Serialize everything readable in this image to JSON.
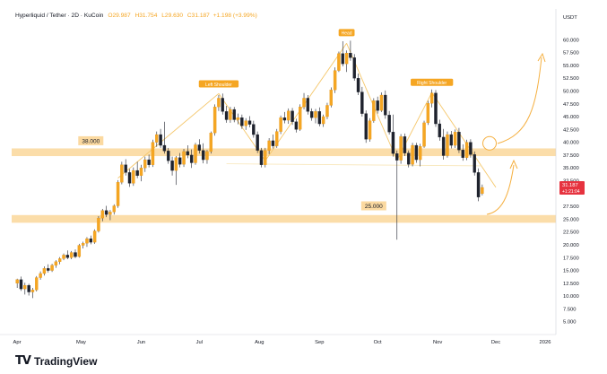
{
  "header": {
    "symbol": "Hyperliquid / Tether · 2D · KuCoin",
    "open": "O29.987",
    "high": "H31.754",
    "low": "L29.630",
    "close": "C31.187",
    "change": "+1.198 (+3.99%)"
  },
  "price_axis": {
    "currency": "USDT",
    "ticks": [
      "60.000",
      "57.500",
      "55.000",
      "52.500",
      "50.000",
      "47.500",
      "45.000",
      "42.500",
      "40.000",
      "37.500",
      "35.000",
      "32.500",
      "27.500",
      "25.000",
      "22.500",
      "20.000",
      "17.500",
      "15.000",
      "12.500",
      "10.000",
      "7.500",
      "5.000"
    ],
    "current_price": "31.187",
    "countdown": "+1:21:04"
  },
  "time_axis": {
    "ticks": [
      "Apr",
      "May",
      "Jun",
      "Jul",
      "Aug",
      "Sep",
      "Oct",
      "Nov",
      "Dec",
      "2026"
    ]
  },
  "annotations": {
    "left_shoulder": "Left Shoulder",
    "head": "Head",
    "right_shoulder": "Right Shoulder",
    "level_high": "38.000",
    "level_low": "25.000"
  },
  "brand": {
    "logo": "TV",
    "name": "TradingView"
  },
  "colors": {
    "up_candle": "#f5a623",
    "down_candle": "#1e222d",
    "zone": "#fbd9a0",
    "pattern_line": "#f5c76b",
    "arrow": "#f5b041",
    "price_tag": "#e6333f"
  },
  "chart_data": {
    "type": "candlestick",
    "timeframe": "2D",
    "x_axis": "date",
    "ylim": [
      2.5,
      62.5
    ],
    "support_zones": [
      {
        "label": "38.000",
        "from": 37.3,
        "to": 38.8
      },
      {
        "label": "25.000",
        "from": 24.3,
        "to": 25.8
      }
    ],
    "candles": [
      {
        "date": "2025-03-29",
        "o": 12.5,
        "h": 13.4,
        "l": 11.6,
        "c": 13.2
      },
      {
        "date": "2025-03-31",
        "o": 13.2,
        "h": 13.8,
        "l": 11.0,
        "c": 11.4
      },
      {
        "date": "2025-04-02",
        "o": 11.4,
        "h": 12.6,
        "l": 10.3,
        "c": 12.1
      },
      {
        "date": "2025-04-04",
        "o": 12.1,
        "h": 12.4,
        "l": 10.1,
        "c": 10.8
      },
      {
        "date": "2025-04-06",
        "o": 10.8,
        "h": 11.6,
        "l": 9.6,
        "c": 11.2
      },
      {
        "date": "2025-04-08",
        "o": 11.2,
        "h": 13.9,
        "l": 10.9,
        "c": 13.6
      },
      {
        "date": "2025-04-10",
        "o": 13.6,
        "h": 14.8,
        "l": 13.2,
        "c": 14.4
      },
      {
        "date": "2025-04-12",
        "o": 14.4,
        "h": 15.8,
        "l": 14.0,
        "c": 15.4
      },
      {
        "date": "2025-04-14",
        "o": 15.4,
        "h": 16.2,
        "l": 14.6,
        "c": 15.0
      },
      {
        "date": "2025-04-16",
        "o": 15.0,
        "h": 16.3,
        "l": 14.7,
        "c": 16.0
      },
      {
        "date": "2025-04-18",
        "o": 16.0,
        "h": 17.0,
        "l": 15.5,
        "c": 16.7
      },
      {
        "date": "2025-04-20",
        "o": 16.7,
        "h": 17.6,
        "l": 16.2,
        "c": 17.3
      },
      {
        "date": "2025-04-22",
        "o": 17.3,
        "h": 18.3,
        "l": 17.0,
        "c": 18.0
      },
      {
        "date": "2025-04-24",
        "o": 18.0,
        "h": 18.9,
        "l": 17.2,
        "c": 17.5
      },
      {
        "date": "2025-04-26",
        "o": 17.5,
        "h": 18.8,
        "l": 17.2,
        "c": 18.5
      },
      {
        "date": "2025-04-28",
        "o": 18.5,
        "h": 19.1,
        "l": 17.4,
        "c": 17.7
      },
      {
        "date": "2025-04-30",
        "o": 17.7,
        "h": 20.2,
        "l": 17.5,
        "c": 19.9
      },
      {
        "date": "2025-05-02",
        "o": 19.9,
        "h": 20.6,
        "l": 19.3,
        "c": 20.3
      },
      {
        "date": "2025-05-04",
        "o": 20.3,
        "h": 21.5,
        "l": 19.6,
        "c": 21.2
      },
      {
        "date": "2025-05-06",
        "o": 21.2,
        "h": 21.8,
        "l": 20.1,
        "c": 20.5
      },
      {
        "date": "2025-05-08",
        "o": 20.5,
        "h": 23.0,
        "l": 20.2,
        "c": 22.7
      },
      {
        "date": "2025-05-10",
        "o": 22.7,
        "h": 25.6,
        "l": 22.4,
        "c": 25.2
      },
      {
        "date": "2025-05-12",
        "o": 25.2,
        "h": 27.0,
        "l": 24.6,
        "c": 26.7
      },
      {
        "date": "2025-05-14",
        "o": 26.7,
        "h": 27.6,
        "l": 25.4,
        "c": 25.9
      },
      {
        "date": "2025-05-16",
        "o": 25.9,
        "h": 26.8,
        "l": 24.8,
        "c": 26.4
      },
      {
        "date": "2025-05-18",
        "o": 26.4,
        "h": 27.9,
        "l": 25.9,
        "c": 27.6
      },
      {
        "date": "2025-05-20",
        "o": 27.6,
        "h": 32.6,
        "l": 27.2,
        "c": 32.2
      },
      {
        "date": "2025-05-22",
        "o": 32.2,
        "h": 36.2,
        "l": 31.8,
        "c": 35.6
      },
      {
        "date": "2025-05-24",
        "o": 35.6,
        "h": 36.7,
        "l": 33.5,
        "c": 34.1
      },
      {
        "date": "2025-05-26",
        "o": 34.1,
        "h": 34.8,
        "l": 31.3,
        "c": 32.0
      },
      {
        "date": "2025-05-28",
        "o": 32.0,
        "h": 35.1,
        "l": 31.5,
        "c": 34.5
      },
      {
        "date": "2025-05-30",
        "o": 34.5,
        "h": 36.2,
        "l": 33.0,
        "c": 33.5
      },
      {
        "date": "2025-06-01",
        "o": 33.5,
        "h": 35.6,
        "l": 32.4,
        "c": 35.0
      },
      {
        "date": "2025-06-03",
        "o": 35.0,
        "h": 37.2,
        "l": 34.2,
        "c": 36.6
      },
      {
        "date": "2025-06-05",
        "o": 36.6,
        "h": 37.6,
        "l": 35.1,
        "c": 35.6
      },
      {
        "date": "2025-06-07",
        "o": 35.6,
        "h": 40.5,
        "l": 35.2,
        "c": 40.0
      },
      {
        "date": "2025-06-09",
        "o": 40.0,
        "h": 42.1,
        "l": 39.1,
        "c": 41.5
      },
      {
        "date": "2025-06-11",
        "o": 41.5,
        "h": 42.6,
        "l": 38.9,
        "c": 39.4
      },
      {
        "date": "2025-06-13",
        "o": 39.4,
        "h": 44.0,
        "l": 37.8,
        "c": 38.3
      },
      {
        "date": "2025-06-15",
        "o": 38.3,
        "h": 38.9,
        "l": 35.8,
        "c": 36.4
      },
      {
        "date": "2025-06-17",
        "o": 36.4,
        "h": 37.2,
        "l": 33.5,
        "c": 34.5
      },
      {
        "date": "2025-06-19",
        "o": 34.5,
        "h": 37.3,
        "l": 31.7,
        "c": 37.0
      },
      {
        "date": "2025-06-21",
        "o": 37.0,
        "h": 37.9,
        "l": 35.1,
        "c": 35.7
      },
      {
        "date": "2025-06-23",
        "o": 35.7,
        "h": 38.7,
        "l": 35.2,
        "c": 38.2
      },
      {
        "date": "2025-06-25",
        "o": 38.2,
        "h": 39.4,
        "l": 36.9,
        "c": 37.5
      },
      {
        "date": "2025-06-27",
        "o": 37.5,
        "h": 38.6,
        "l": 35.0,
        "c": 36.0
      },
      {
        "date": "2025-06-29",
        "o": 36.0,
        "h": 39.9,
        "l": 35.6,
        "c": 39.5
      },
      {
        "date": "2025-07-01",
        "o": 39.5,
        "h": 40.6,
        "l": 37.8,
        "c": 38.4
      },
      {
        "date": "2025-07-03",
        "o": 38.4,
        "h": 39.8,
        "l": 35.9,
        "c": 36.6
      },
      {
        "date": "2025-07-05",
        "o": 36.6,
        "h": 38.5,
        "l": 35.8,
        "c": 38.2
      },
      {
        "date": "2025-07-07",
        "o": 38.2,
        "h": 42.1,
        "l": 37.8,
        "c": 41.8
      },
      {
        "date": "2025-07-09",
        "o": 41.8,
        "h": 47.4,
        "l": 41.3,
        "c": 46.9
      },
      {
        "date": "2025-07-11",
        "o": 46.9,
        "h": 49.2,
        "l": 46.1,
        "c": 48.6
      },
      {
        "date": "2025-07-13",
        "o": 48.6,
        "h": 49.5,
        "l": 45.4,
        "c": 46.0
      },
      {
        "date": "2025-07-15",
        "o": 46.0,
        "h": 47.1,
        "l": 43.8,
        "c": 44.4
      },
      {
        "date": "2025-07-17",
        "o": 44.4,
        "h": 46.9,
        "l": 43.8,
        "c": 46.4
      },
      {
        "date": "2025-07-19",
        "o": 46.4,
        "h": 46.9,
        "l": 43.9,
        "c": 44.4
      },
      {
        "date": "2025-07-21",
        "o": 44.4,
        "h": 45.6,
        "l": 43.5,
        "c": 44.8
      },
      {
        "date": "2025-07-23",
        "o": 44.8,
        "h": 45.4,
        "l": 42.6,
        "c": 43.2
      },
      {
        "date": "2025-07-25",
        "o": 43.2,
        "h": 44.7,
        "l": 42.4,
        "c": 44.2
      },
      {
        "date": "2025-07-27",
        "o": 44.2,
        "h": 45.1,
        "l": 42.9,
        "c": 43.5
      },
      {
        "date": "2025-07-29",
        "o": 43.5,
        "h": 44.2,
        "l": 40.9,
        "c": 41.5
      },
      {
        "date": "2025-07-31",
        "o": 41.5,
        "h": 42.1,
        "l": 37.9,
        "c": 38.4
      },
      {
        "date": "2025-08-02",
        "o": 38.4,
        "h": 38.9,
        "l": 35.1,
        "c": 35.6
      },
      {
        "date": "2025-08-04",
        "o": 35.6,
        "h": 38.9,
        "l": 35.1,
        "c": 38.4
      },
      {
        "date": "2025-08-06",
        "o": 38.4,
        "h": 40.8,
        "l": 37.7,
        "c": 40.3
      },
      {
        "date": "2025-08-08",
        "o": 40.3,
        "h": 41.5,
        "l": 38.8,
        "c": 39.3
      },
      {
        "date": "2025-08-10",
        "o": 39.3,
        "h": 42.6,
        "l": 38.9,
        "c": 42.1
      },
      {
        "date": "2025-08-12",
        "o": 42.1,
        "h": 45.2,
        "l": 41.6,
        "c": 44.8
      },
      {
        "date": "2025-08-14",
        "o": 44.8,
        "h": 45.9,
        "l": 43.7,
        "c": 44.3
      },
      {
        "date": "2025-08-16",
        "o": 44.3,
        "h": 46.6,
        "l": 43.6,
        "c": 46.1
      },
      {
        "date": "2025-08-18",
        "o": 46.1,
        "h": 46.7,
        "l": 43.4,
        "c": 44.0
      },
      {
        "date": "2025-08-20",
        "o": 44.0,
        "h": 44.6,
        "l": 41.9,
        "c": 42.5
      },
      {
        "date": "2025-08-22",
        "o": 42.5,
        "h": 47.4,
        "l": 42.2,
        "c": 46.9
      },
      {
        "date": "2025-08-24",
        "o": 46.9,
        "h": 49.6,
        "l": 46.4,
        "c": 48.6
      },
      {
        "date": "2025-08-26",
        "o": 48.6,
        "h": 49.2,
        "l": 45.4,
        "c": 46.0
      },
      {
        "date": "2025-08-28",
        "o": 46.0,
        "h": 46.6,
        "l": 44.2,
        "c": 44.8
      },
      {
        "date": "2025-08-30",
        "o": 44.8,
        "h": 46.5,
        "l": 43.7,
        "c": 46.0
      },
      {
        "date": "2025-09-01",
        "o": 46.0,
        "h": 46.8,
        "l": 43.1,
        "c": 43.6
      },
      {
        "date": "2025-09-03",
        "o": 43.6,
        "h": 45.4,
        "l": 43.0,
        "c": 45.0
      },
      {
        "date": "2025-09-05",
        "o": 45.0,
        "h": 47.7,
        "l": 44.5,
        "c": 47.2
      },
      {
        "date": "2025-09-07",
        "o": 47.2,
        "h": 50.7,
        "l": 46.8,
        "c": 50.2
      },
      {
        "date": "2025-09-09",
        "o": 50.2,
        "h": 54.6,
        "l": 49.6,
        "c": 54.0
      },
      {
        "date": "2025-09-11",
        "o": 54.0,
        "h": 57.7,
        "l": 53.7,
        "c": 57.3
      },
      {
        "date": "2025-09-13",
        "o": 57.3,
        "h": 59.7,
        "l": 54.8,
        "c": 55.3
      },
      {
        "date": "2025-09-15",
        "o": 55.3,
        "h": 57.9,
        "l": 53.7,
        "c": 57.4
      },
      {
        "date": "2025-09-17",
        "o": 57.4,
        "h": 59.8,
        "l": 55.9,
        "c": 56.5
      },
      {
        "date": "2025-09-19",
        "o": 56.5,
        "h": 57.2,
        "l": 52.0,
        "c": 52.5
      },
      {
        "date": "2025-09-21",
        "o": 52.5,
        "h": 53.4,
        "l": 49.2,
        "c": 49.8
      },
      {
        "date": "2025-09-23",
        "o": 49.8,
        "h": 50.8,
        "l": 45.0,
        "c": 45.6
      },
      {
        "date": "2025-09-25",
        "o": 45.6,
        "h": 46.2,
        "l": 39.9,
        "c": 40.6
      },
      {
        "date": "2025-09-27",
        "o": 40.6,
        "h": 44.7,
        "l": 40.1,
        "c": 44.2
      },
      {
        "date": "2025-09-29",
        "o": 44.2,
        "h": 48.6,
        "l": 43.8,
        "c": 48.1
      },
      {
        "date": "2025-10-01",
        "o": 48.1,
        "h": 48.9,
        "l": 45.6,
        "c": 46.2
      },
      {
        "date": "2025-10-03",
        "o": 46.2,
        "h": 49.7,
        "l": 45.9,
        "c": 49.2
      },
      {
        "date": "2025-10-05",
        "o": 49.2,
        "h": 50.1,
        "l": 44.6,
        "c": 45.3
      },
      {
        "date": "2025-10-07",
        "o": 45.3,
        "h": 46.1,
        "l": 41.5,
        "c": 42.0
      },
      {
        "date": "2025-10-09",
        "o": 42.0,
        "h": 45.4,
        "l": 37.2,
        "c": 37.8
      },
      {
        "date": "2025-10-11",
        "o": 37.8,
        "h": 38.4,
        "l": 21.0,
        "c": 36.5
      },
      {
        "date": "2025-10-13",
        "o": 36.5,
        "h": 41.6,
        "l": 35.8,
        "c": 41.1
      },
      {
        "date": "2025-10-15",
        "o": 41.1,
        "h": 41.7,
        "l": 37.3,
        "c": 37.9
      },
      {
        "date": "2025-10-17",
        "o": 37.9,
        "h": 38.4,
        "l": 35.1,
        "c": 35.7
      },
      {
        "date": "2025-10-19",
        "o": 35.7,
        "h": 39.9,
        "l": 35.3,
        "c": 39.4
      },
      {
        "date": "2025-10-21",
        "o": 39.4,
        "h": 39.9,
        "l": 36.0,
        "c": 36.6
      },
      {
        "date": "2025-10-23",
        "o": 36.6,
        "h": 39.7,
        "l": 35.3,
        "c": 39.2
      },
      {
        "date": "2025-10-25",
        "o": 39.2,
        "h": 44.2,
        "l": 38.9,
        "c": 43.8
      },
      {
        "date": "2025-10-27",
        "o": 43.8,
        "h": 48.1,
        "l": 43.4,
        "c": 47.6
      },
      {
        "date": "2025-10-29",
        "o": 47.6,
        "h": 50.3,
        "l": 46.8,
        "c": 49.6
      },
      {
        "date": "2025-10-31",
        "o": 49.6,
        "h": 50.2,
        "l": 43.0,
        "c": 43.6
      },
      {
        "date": "2025-11-02",
        "o": 43.6,
        "h": 44.4,
        "l": 40.3,
        "c": 41.0
      },
      {
        "date": "2025-11-04",
        "o": 41.0,
        "h": 42.6,
        "l": 36.6,
        "c": 37.4
      },
      {
        "date": "2025-11-06",
        "o": 37.4,
        "h": 42.1,
        "l": 37.0,
        "c": 41.5
      },
      {
        "date": "2025-11-08",
        "o": 41.5,
        "h": 42.2,
        "l": 38.8,
        "c": 39.4
      },
      {
        "date": "2025-11-10",
        "o": 39.4,
        "h": 42.5,
        "l": 38.9,
        "c": 42.0
      },
      {
        "date": "2025-11-12",
        "o": 42.0,
        "h": 42.8,
        "l": 37.9,
        "c": 38.5
      },
      {
        "date": "2025-11-14",
        "o": 38.5,
        "h": 39.6,
        "l": 36.4,
        "c": 37.0
      },
      {
        "date": "2025-11-16",
        "o": 37.0,
        "h": 40.5,
        "l": 36.5,
        "c": 40.0
      },
      {
        "date": "2025-11-18",
        "o": 40.0,
        "h": 40.6,
        "l": 37.0,
        "c": 37.6
      },
      {
        "date": "2025-11-20",
        "o": 37.6,
        "h": 38.2,
        "l": 33.5,
        "c": 34.1
      },
      {
        "date": "2025-11-22",
        "o": 34.1,
        "h": 34.9,
        "l": 28.5,
        "c": 29.3
      },
      {
        "date": "2025-11-24",
        "o": 29.99,
        "h": 31.75,
        "l": 29.63,
        "c": 31.19
      }
    ]
  }
}
